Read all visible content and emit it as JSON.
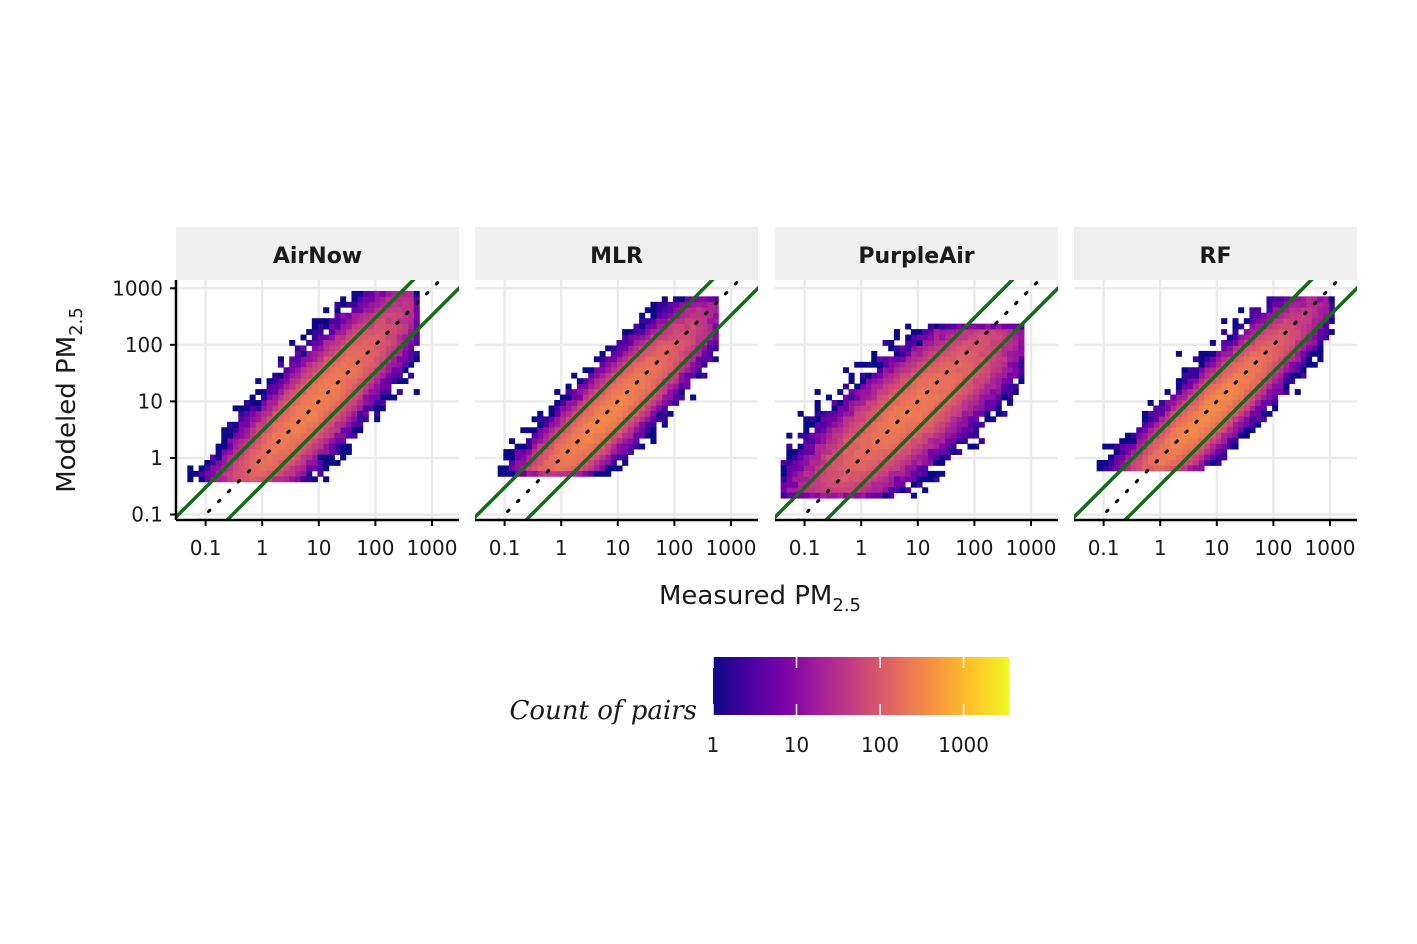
{
  "chart_data": {
    "type": "heatmap",
    "facet_label_note": "",
    "x_axis": {
      "title_main": "Measured PM",
      "title_sub": "2.5",
      "scale": "log10",
      "ticks": [
        0.1,
        1,
        10,
        100,
        1000
      ],
      "tick_labels": [
        "0.1",
        "1",
        "10",
        "100",
        "1000"
      ],
      "range": [
        0.03,
        3000
      ]
    },
    "y_axis": {
      "title_main": "Modeled PM",
      "title_sub": "2.5",
      "scale": "log10",
      "ticks": [
        0.1,
        1,
        10,
        100,
        1000
      ],
      "tick_labels": [
        "0.1",
        "1",
        "10",
        "100",
        "1000"
      ],
      "range": [
        0.08,
        1400
      ]
    },
    "reference_lines": {
      "one_to_one": "dotted black",
      "bounds": "solid green",
      "bound_factor": 3
    },
    "grid": true,
    "legend": {
      "title": "Count of pairs",
      "position": "bottom",
      "scale": "log10",
      "ticks": [
        1,
        10,
        100,
        1000
      ],
      "tick_labels": [
        "1",
        "10",
        "100",
        "1000"
      ],
      "max": 3500,
      "colormap": "plasma"
    },
    "panels": [
      {
        "name": "AirNow",
        "center_log": 0.85,
        "slope": 1.0,
        "intercept": 0.0,
        "spread": 0.38,
        "along_sd": 0.85,
        "x_min": -1.35,
        "x_max": 2.7,
        "y_max": 2.95,
        "y_min": -0.4,
        "seed": 11
      },
      {
        "name": "MLR",
        "center_log": 0.75,
        "slope": 0.95,
        "intercept": 0.0,
        "spread": 0.32,
        "along_sd": 0.85,
        "x_min": -1.35,
        "x_max": 2.75,
        "y_max": 2.8,
        "y_min": -0.25,
        "seed": 23
      },
      {
        "name": "PurpleAir",
        "center_log": 0.85,
        "slope": 0.78,
        "intercept": 0.15,
        "spread": 0.42,
        "along_sd": 0.9,
        "x_min": -1.35,
        "x_max": 2.85,
        "y_max": 2.3,
        "y_min": -0.65,
        "seed": 37
      },
      {
        "name": "RF",
        "center_log": 0.85,
        "slope": 0.95,
        "intercept": 0.0,
        "spread": 0.3,
        "along_sd": 0.85,
        "x_min": -1.35,
        "x_max": 3.0,
        "y_max": 2.85,
        "y_min": -0.2,
        "seed": 41
      }
    ]
  }
}
